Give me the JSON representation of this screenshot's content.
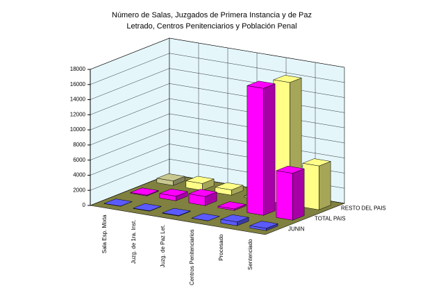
{
  "chart_data": {
    "type": "bar3d",
    "title": "Número de Salas, Juzgados de Primera Instancia y de Paz Letrado, Centros Penitenciarios y Población Penal",
    "categories": [
      "Sala Esp. Mixta",
      "Juzg. de 1ra. Inst.",
      "Juzg. de Paz Let.",
      "Centros Penitenciarios",
      "Procesado",
      "Sentenciado"
    ],
    "series": [
      {
        "name": "JUNIN",
        "color": "#5a5aff",
        "values": [
          20,
          40,
          60,
          10,
          500,
          300
        ]
      },
      {
        "name": "TOTAL PAIS",
        "color": "#ff00ff",
        "values": [
          100,
          600,
          1200,
          200,
          16800,
          6200
        ]
      },
      {
        "name": "RESTO DEL PAIS",
        "color": "#c8c890",
        "colors": [
          "#c8c890",
          "#ffff88",
          "#ffff88",
          "#c8c890",
          "#ffff88",
          "#ffff88"
        ],
        "values": [
          600,
          900,
          700,
          200,
          16200,
          5800
        ]
      }
    ],
    "ylim": [
      0,
      18000
    ],
    "yticks": [
      0,
      2000,
      4000,
      6000,
      8000,
      10000,
      12000,
      14000,
      16000,
      18000
    ]
  }
}
